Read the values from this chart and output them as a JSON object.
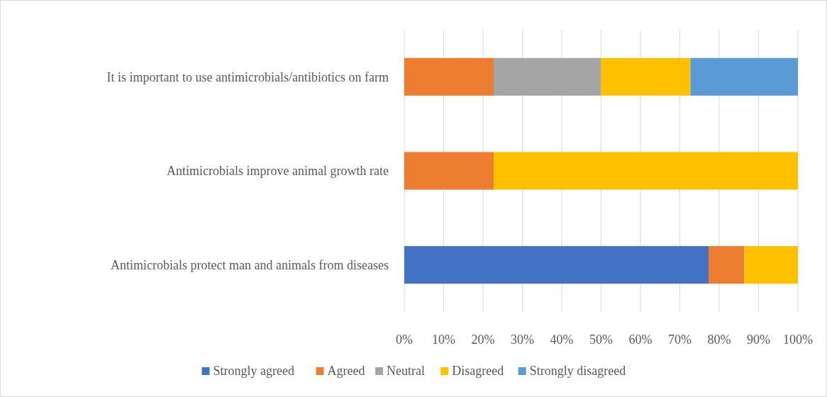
{
  "chart_data": {
    "type": "bar",
    "orientation": "horizontal",
    "stacked": true,
    "categories": [
      "It is important to use antimicrobials/antibiotics on farm",
      "Antimicrobials improve animal growth rate",
      "Antimicrobials protect man and animals from diseases"
    ],
    "series": [
      {
        "name": "Strongly agreed",
        "color": "#4472c4",
        "values": [
          0,
          0,
          77.3
        ]
      },
      {
        "name": "Agreed",
        "color": "#ed7d31",
        "values": [
          22.7,
          22.7,
          9.1
        ]
      },
      {
        "name": "Neutral",
        "color": "#a5a5a5",
        "values": [
          27.3,
          0,
          0
        ]
      },
      {
        "name": "Disagreed",
        "color": "#ffc000",
        "values": [
          22.7,
          77.3,
          13.6
        ]
      },
      {
        "name": "Strongly disagreed",
        "color": "#5b9bd5",
        "values": [
          27.3,
          0,
          0
        ]
      }
    ],
    "xlim": [
      0,
      100
    ],
    "xticks": [
      {
        "value": 0,
        "label": "0%"
      },
      {
        "value": 10,
        "label": "10%"
      },
      {
        "value": 20,
        "label": "20%"
      },
      {
        "value": 30,
        "label": "30%"
      },
      {
        "value": 40,
        "label": "40%"
      },
      {
        "value": 50,
        "label": "50%"
      },
      {
        "value": 60,
        "label": "60%"
      },
      {
        "value": 70,
        "label": "70%"
      },
      {
        "value": 80,
        "label": "80%"
      },
      {
        "value": 90,
        "label": "90%"
      },
      {
        "value": 100,
        "label": "100%"
      }
    ],
    "grid": "x",
    "legend": "bottom"
  }
}
